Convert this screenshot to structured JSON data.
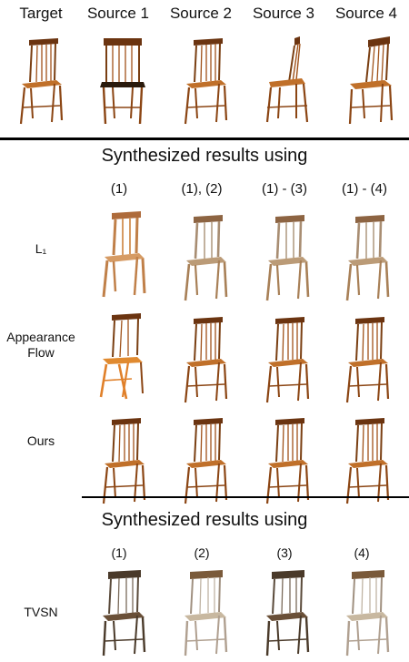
{
  "header": {
    "labels": [
      "Target",
      "Source 1",
      "Source 2",
      "Source 3",
      "Source 4"
    ]
  },
  "section1": {
    "title": "Synthesized results using",
    "columns": [
      "(1)",
      "(1), (2)",
      "(1) - (3)",
      "(1) - (4)"
    ],
    "rows": [
      {
        "label": "L₁"
      },
      {
        "label": "Appearance\nFlow"
      },
      {
        "label": "Ours"
      }
    ]
  },
  "section2": {
    "title": "Synthesized results using",
    "columns": [
      "(1)",
      "(2)",
      "(3)",
      "(4)"
    ],
    "rows": [
      {
        "label": "TVSN"
      }
    ]
  },
  "colors": {
    "wood": "#b5651d",
    "wood_dark": "#6b3410",
    "wood_gray": "#9a8a78",
    "rule": "#000000"
  }
}
